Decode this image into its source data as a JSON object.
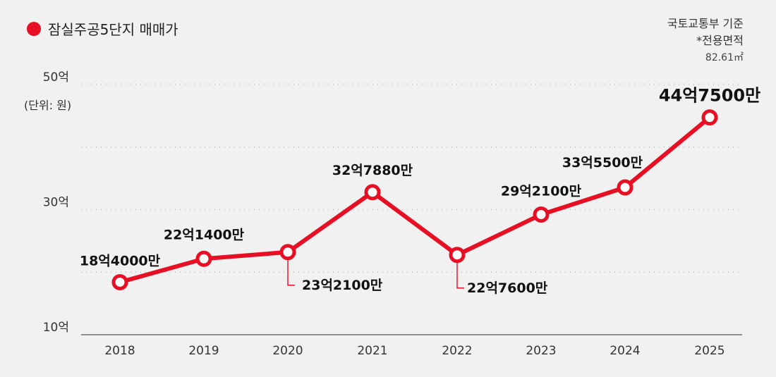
{
  "legend": {
    "label": "잠실주공5단지 매매가",
    "color": "#e60f24"
  },
  "source": {
    "line1": "국토교통부 기준",
    "line2": "*전용면적",
    "line3": "82.61㎡"
  },
  "unit": "(단위: 원)",
  "chart_data": {
    "type": "line",
    "categories": [
      "2018",
      "2019",
      "2020",
      "2021",
      "2022",
      "2023",
      "2024",
      "2025"
    ],
    "series": [
      {
        "name": "잠실주공5단지 매매가",
        "color": "#e60f24",
        "values": [
          18.4,
          22.14,
          23.21,
          32.788,
          22.76,
          29.21,
          33.55,
          44.75
        ]
      }
    ],
    "data_labels": [
      "18억4000만",
      "22억1400만",
      "23억2100만",
      "32억7880만",
      "22억7600만",
      "29억2100만",
      "33억5500만",
      "44억7500만"
    ],
    "yticks": [
      {
        "value": 10,
        "label": "10억"
      },
      {
        "value": 20,
        "label": ""
      },
      {
        "value": 30,
        "label": "30억"
      },
      {
        "value": 40,
        "label": ""
      },
      {
        "value": 50,
        "label": "50억"
      }
    ],
    "ylim": [
      10,
      50
    ],
    "grid": true,
    "emphasis_index": 7
  }
}
